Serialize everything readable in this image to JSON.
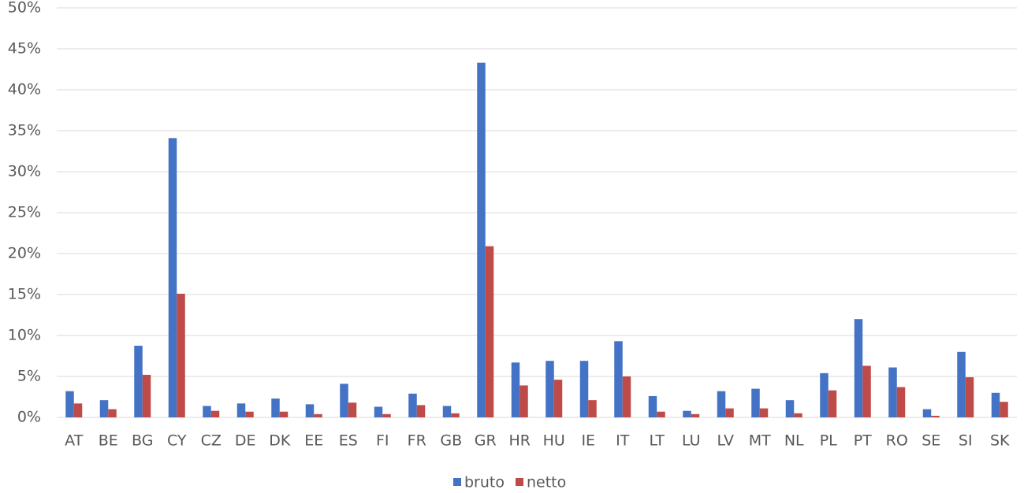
{
  "chart_data": {
    "type": "bar",
    "categories": [
      "AT",
      "BE",
      "BG",
      "CY",
      "CZ",
      "DE",
      "DK",
      "EE",
      "ES",
      "FI",
      "FR",
      "GB",
      "GR",
      "HR",
      "HU",
      "IE",
      "IT",
      "LT",
      "LU",
      "LV",
      "MT",
      "NL",
      "PL",
      "PT",
      "RO",
      "SE",
      "SI",
      "SK"
    ],
    "series": [
      {
        "name": "bruto",
        "color": "#4472c4",
        "values": [
          3.2,
          2.1,
          8.75,
          34.1,
          1.4,
          1.7,
          2.3,
          1.6,
          4.1,
          1.3,
          2.9,
          1.4,
          43.3,
          6.7,
          6.9,
          6.9,
          9.3,
          2.6,
          0.8,
          3.2,
          3.5,
          2.1,
          5.4,
          12.0,
          6.1,
          1.0,
          8.0,
          3.0
        ]
      },
      {
        "name": "netto",
        "color": "#be4b48",
        "values": [
          1.7,
          1.0,
          5.2,
          15.1,
          0.8,
          0.7,
          0.7,
          0.4,
          1.8,
          0.4,
          1.5,
          0.5,
          20.9,
          3.9,
          4.6,
          2.1,
          5.0,
          0.7,
          0.4,
          1.1,
          1.1,
          0.5,
          3.3,
          6.3,
          3.7,
          0.2,
          4.9,
          1.9
        ]
      }
    ],
    "ylim": [
      0,
      50
    ],
    "yticks": [
      {
        "value": 0,
        "label": "0%"
      },
      {
        "value": 5,
        "label": "5%"
      },
      {
        "value": 10,
        "label": "10%"
      },
      {
        "value": 15,
        "label": "15%"
      },
      {
        "value": 20,
        "label": "20%"
      },
      {
        "value": 25,
        "label": "25%"
      },
      {
        "value": 30,
        "label": "30%"
      },
      {
        "value": 35,
        "label": "35%"
      },
      {
        "value": 40,
        "label": "40%"
      },
      {
        "value": 45,
        "label": "45%"
      },
      {
        "value": 50,
        "label": "50%"
      }
    ],
    "grid": true,
    "legend": "bottom"
  }
}
